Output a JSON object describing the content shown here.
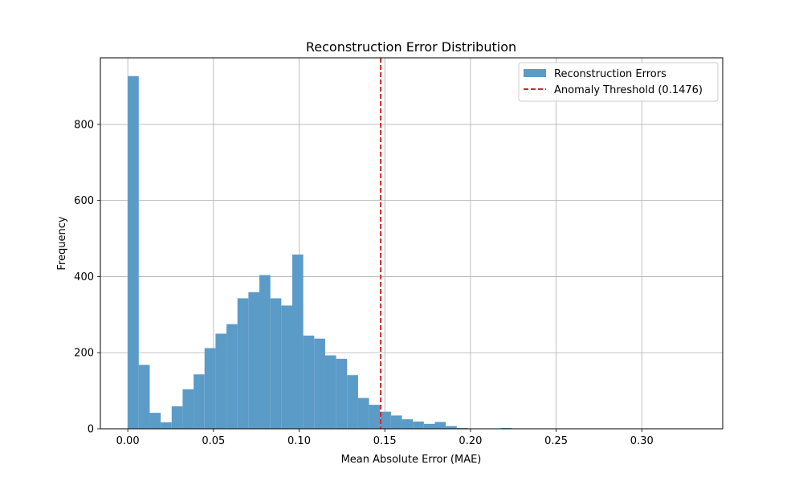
{
  "chart_data": {
    "type": "bar",
    "title": "Reconstruction Error Distribution",
    "xlabel": "Mean Absolute Error (MAE)",
    "ylabel": "Frequency",
    "xlim": [
      -0.016,
      0.3472
    ],
    "ylim": [
      0,
      975
    ],
    "xticks": [
      0.0,
      0.05,
      0.1,
      0.15,
      0.2,
      0.25,
      0.3
    ],
    "xtick_labels": [
      "0.00",
      "0.05",
      "0.10",
      "0.15",
      "0.20",
      "0.25",
      "0.30"
    ],
    "yticks": [
      0,
      200,
      400,
      600,
      800
    ],
    "ytick_labels": [
      "0",
      "200",
      "400",
      "600",
      "800"
    ],
    "grid": true,
    "legend_position": "top-right",
    "series": [
      {
        "name": "Reconstruction Errors",
        "kind": "histogram",
        "color": "#5b9bc8",
        "bin_width": 0.0064,
        "bin_start": 0.0,
        "values": [
          927,
          168,
          42,
          17,
          59,
          104,
          143,
          212,
          250,
          275,
          343,
          359,
          404,
          343,
          324,
          458,
          245,
          237,
          193,
          184,
          141,
          81,
          63,
          45,
          35,
          25,
          19,
          13,
          18,
          7,
          2,
          0,
          0,
          0,
          2,
          0,
          0,
          0,
          0,
          0,
          0,
          0,
          0,
          0,
          0,
          0,
          0,
          0,
          0,
          0
        ]
      },
      {
        "name": "Anomaly Threshold (0.1476)",
        "kind": "vline",
        "color": "#d62728",
        "x": 0.1476
      }
    ]
  }
}
